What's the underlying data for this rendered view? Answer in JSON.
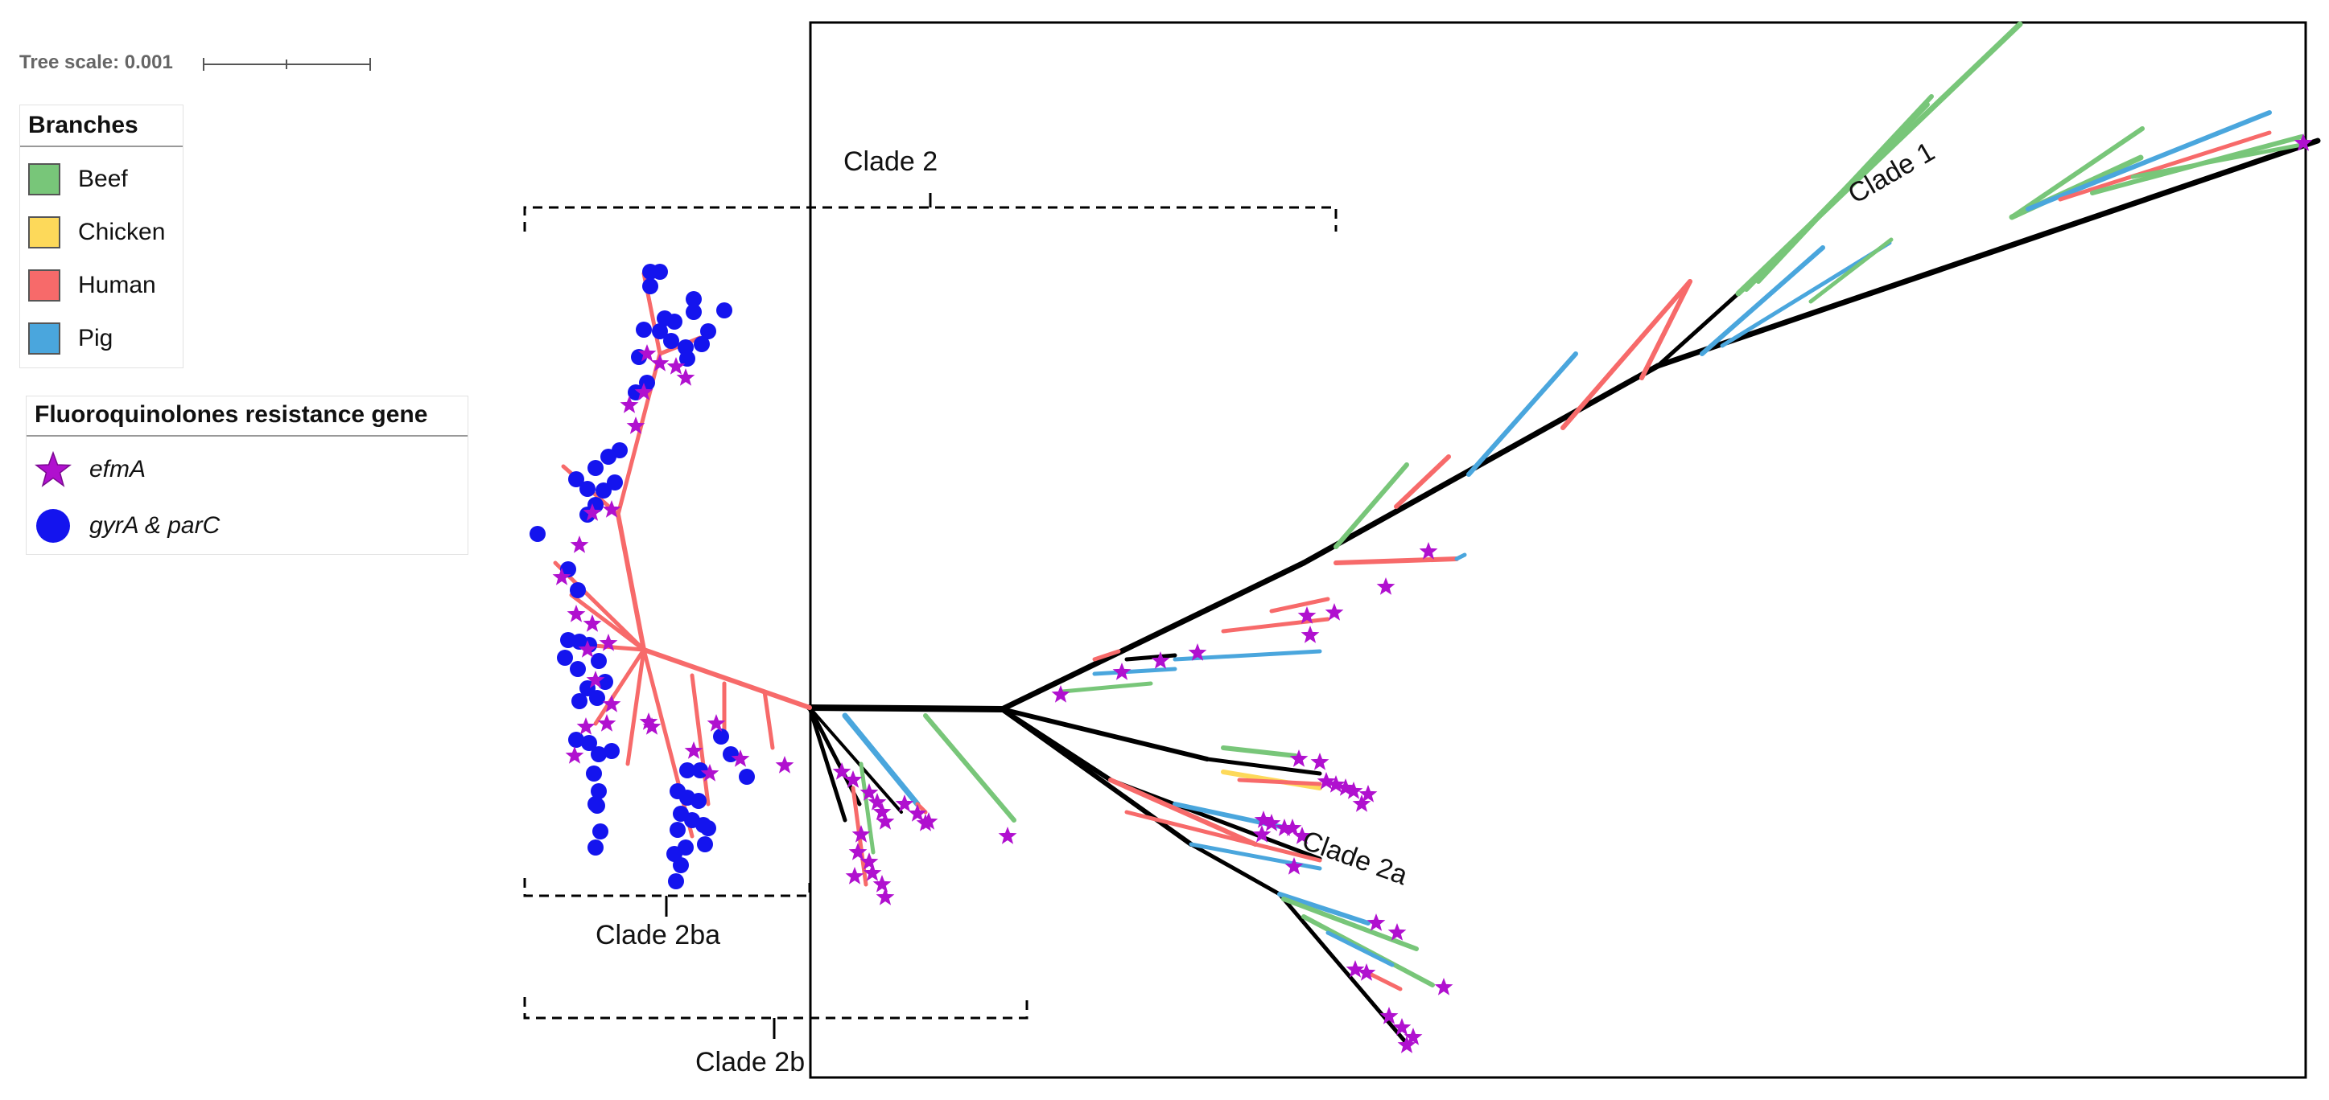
{
  "tree_scale": {
    "label": "Tree scale: 0.001"
  },
  "legend_branches": {
    "title": "Branches",
    "items": [
      {
        "label": "Beef",
        "color": "#78c679"
      },
      {
        "label": "Chicken",
        "color": "#fdd95a"
      },
      {
        "label": "Human",
        "color": "#f76a6a"
      },
      {
        "label": "Pig",
        "color": "#4aa6dd"
      }
    ]
  },
  "legend_genes": {
    "title": "Fluoroquinolones resistance gene",
    "items": [
      {
        "label": "efmA",
        "icon": "star-icon",
        "color": "#b010cf"
      },
      {
        "label": "gyrA & parC",
        "icon": "circle-icon",
        "color": "#1414ee"
      }
    ]
  },
  "clades": {
    "clade1": "Clade 1",
    "clade2": "Clade 2",
    "clade2a": "Clade 2a",
    "clade2b": "Clade 2b",
    "clade2ba": "Clade 2ba"
  },
  "colors": {
    "backbone": "#000000",
    "frame": "#000000"
  }
}
